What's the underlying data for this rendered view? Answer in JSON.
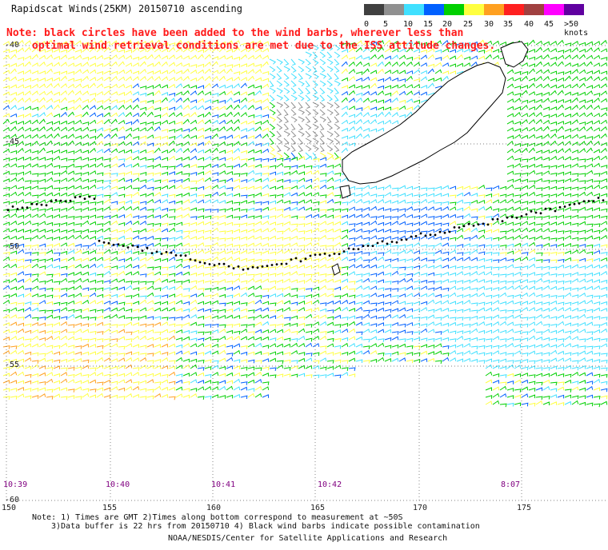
{
  "header": {
    "title": "Rapidscat Winds(25KM) 20150710 ascending"
  },
  "note": {
    "line1": "Note: black circles have been added to the wind barbs, wherever less than",
    "line2": "optimal wind retrieval conditions are met due to the ISS attitude changes."
  },
  "legend": {
    "labels": [
      "0",
      "5",
      "10",
      "15",
      "20",
      "25",
      "30",
      "35",
      "40",
      "45",
      ">50 knots"
    ],
    "colors": [
      "#404040",
      "#909090",
      "#40e0ff",
      "#0060ff",
      "#00d000",
      "#ffff40",
      "#ffa020",
      "#ff2020",
      "#a04040",
      "#ff00ff",
      "#6000a0"
    ]
  },
  "map": {
    "lat_labels": [
      "-40",
      "-45",
      "-50",
      "-55",
      "-60"
    ],
    "lon_labels": [
      "150",
      "155",
      "160",
      "165",
      "170",
      "175"
    ],
    "time_labels": [
      "10:39",
      "10:40",
      "10:41",
      "10:42",
      "8:07"
    ]
  },
  "footer": {
    "line1": "Note: 1) Times are GMT 2)Times along bottom correspond to measurement at ~50S",
    "line2": "3)Data buffer is 22 hrs from 20150710 4) Black wind barbs indicate possible contamination",
    "credit": "NOAA/NESDIS/Center for Satellite Applications and Research"
  }
}
